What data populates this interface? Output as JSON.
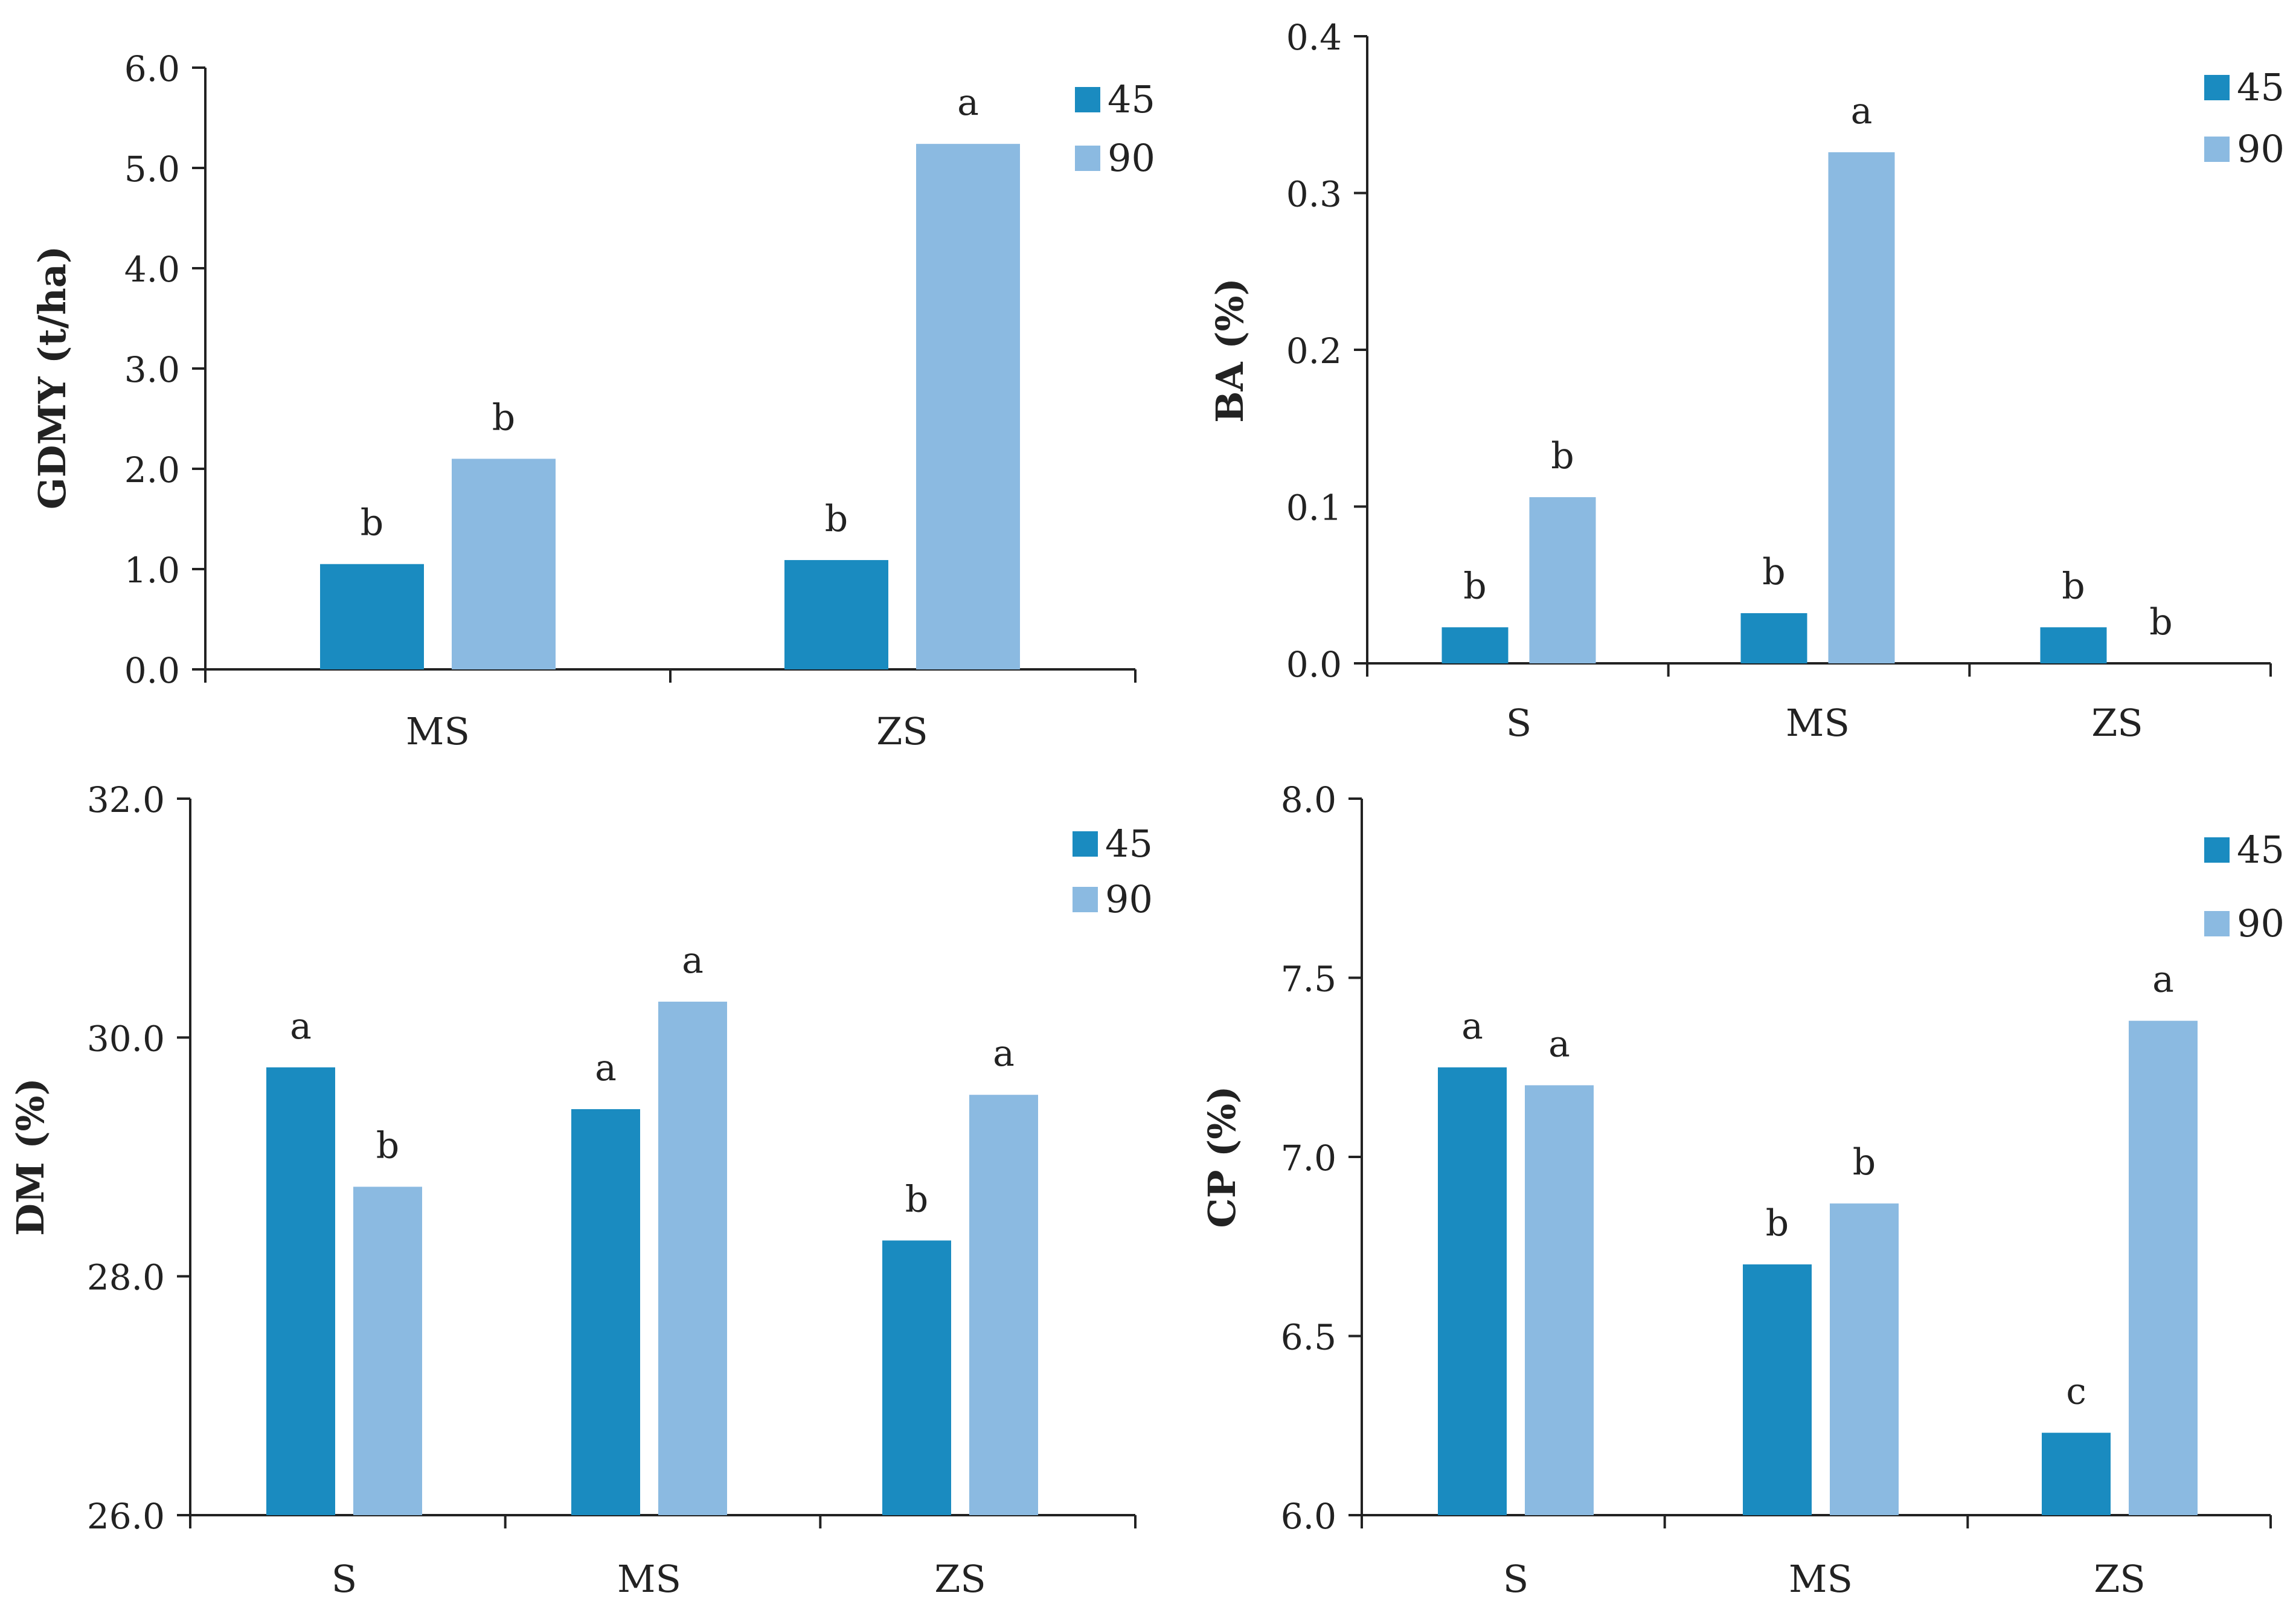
{
  "colors": {
    "s45": "#1a8bc0",
    "s90": "#8bbae1",
    "axis": "#222222"
  },
  "chart_data": [
    {
      "type": "bar",
      "panel": "top-left",
      "ylabel": "GDMY (t/ha)",
      "ylim": [
        0,
        6
      ],
      "yticks": [
        "0.0",
        "1.0",
        "2.0",
        "3.0",
        "4.0",
        "5.0",
        "6.0"
      ],
      "categories": [
        "MS",
        "ZS"
      ],
      "series": [
        {
          "name": "45",
          "values": [
            1.05,
            1.09
          ],
          "letters": [
            "b",
            "b"
          ]
        },
        {
          "name": "90",
          "values": [
            2.1,
            5.24
          ],
          "letters": [
            "b",
            "a"
          ]
        }
      ],
      "legend": [
        "45",
        "90"
      ]
    },
    {
      "type": "bar",
      "panel": "top-right",
      "ylabel": "BA (%)",
      "ylim": [
        0,
        0.4
      ],
      "yticks": [
        "0.0",
        "0.1",
        "0.2",
        "0.3",
        "0.4"
      ],
      "categories": [
        "S",
        "MS",
        "ZS"
      ],
      "series": [
        {
          "name": "45",
          "values": [
            0.023,
            0.032,
            0.023
          ],
          "letters": [
            "b",
            "b",
            "b"
          ]
        },
        {
          "name": "90",
          "values": [
            0.106,
            0.326,
            0.0
          ],
          "letters": [
            "b",
            "a",
            "b"
          ]
        }
      ],
      "legend": [
        "45",
        "90"
      ]
    },
    {
      "type": "bar",
      "panel": "bottom-left",
      "ylabel": "DM (%)",
      "ylim": [
        26,
        32
      ],
      "yticks": [
        "26.0",
        "28.0",
        "30.0",
        "32.0"
      ],
      "categories": [
        "S",
        "MS",
        "ZS"
      ],
      "series": [
        {
          "name": "45",
          "values": [
            29.75,
            29.4,
            28.3
          ],
          "letters": [
            "a",
            "a",
            "b"
          ]
        },
        {
          "name": "90",
          "values": [
            28.75,
            30.3,
            29.52
          ],
          "letters": [
            "b",
            "a",
            "a"
          ]
        }
      ],
      "legend": [
        "45",
        "90"
      ]
    },
    {
      "type": "bar",
      "panel": "bottom-right",
      "ylabel": "CP (%)",
      "ylim": [
        6,
        8
      ],
      "yticks": [
        "6.0",
        "6.5",
        "7.0",
        "7.5",
        "8.0"
      ],
      "categories": [
        "S",
        "MS",
        "ZS"
      ],
      "series": [
        {
          "name": "45",
          "values": [
            7.25,
            6.7,
            6.23
          ],
          "letters": [
            "a",
            "b",
            "c"
          ]
        },
        {
          "name": "90",
          "values": [
            7.2,
            6.87,
            7.38
          ],
          "letters": [
            "a",
            "b",
            "a"
          ]
        }
      ],
      "legend": [
        "45",
        "90"
      ]
    }
  ]
}
